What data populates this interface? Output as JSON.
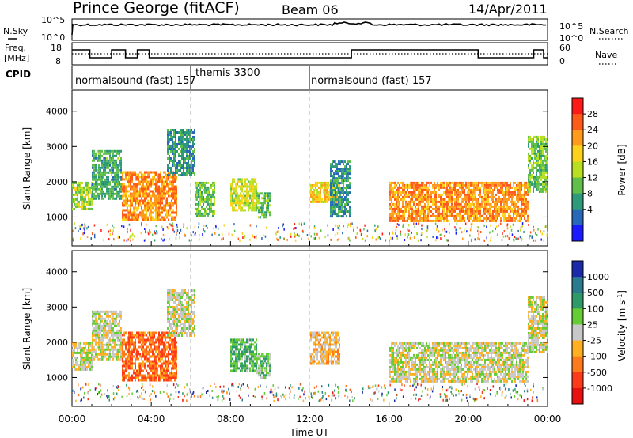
{
  "header": {
    "station": "Prince George (fitACF)",
    "beam": "Beam 06",
    "date": "14/Apr/2011"
  },
  "side_labels": {
    "nsky": "N.Sky",
    "freq_line1": "Freq.",
    "freq_line2": "[MHz]",
    "cpid": "CPID",
    "nsearch": "N.Search",
    "nave": "Nave"
  },
  "noise_panel": {
    "left_ticks": [
      "10^5",
      "10^0"
    ],
    "right_ticks": [
      "10^5",
      "10^0"
    ]
  },
  "freq_panel": {
    "left_ticks": [
      "18",
      "8"
    ],
    "right_ticks": [
      "60",
      "0"
    ],
    "steps": [
      {
        "t0": 0,
        "t1": 0.9,
        "level": 2
      },
      {
        "t0": 0.9,
        "t1": 2.0,
        "level": 1
      },
      {
        "t0": 2.0,
        "t1": 2.7,
        "level": 2
      },
      {
        "t0": 2.7,
        "t1": 3.3,
        "level": 1
      },
      {
        "t0": 3.3,
        "t1": 3.9,
        "level": 2
      },
      {
        "t0": 3.9,
        "t1": 14.1,
        "level": 1
      },
      {
        "t0": 14.1,
        "t1": 20.5,
        "level": 2
      },
      {
        "t0": 20.5,
        "t1": 23.3,
        "level": 1
      },
      {
        "t0": 23.3,
        "t1": 23.8,
        "level": 2
      },
      {
        "t0": 23.8,
        "t1": 24,
        "level": 1
      }
    ]
  },
  "cpid_segments": [
    {
      "label": "normalsound (fast) 157",
      "start": 0
    },
    {
      "label": "themis 3300",
      "start": 6
    },
    {
      "label": "normalsound (fast) 157",
      "start": 12
    }
  ],
  "power_panel": {
    "ylabel": "Slant Range [km]",
    "yticks": [
      "1000",
      "2000",
      "3000",
      "4000"
    ],
    "colorbar_label": "Power [dB]",
    "colorbar_ticks": [
      "28",
      "24",
      "20",
      "16",
      "12",
      "8",
      "4"
    ],
    "colorbar_colors": [
      "#ff1a1a",
      "#ff5a1a",
      "#ff9a1a",
      "#ffd21a",
      "#b8e020",
      "#5fbf4a",
      "#2e9a7a",
      "#2868b8",
      "#1a1aff"
    ]
  },
  "velocity_panel": {
    "ylabel": "Slant Range [km]",
    "yticks": [
      "1000",
      "2000",
      "3000",
      "4000"
    ],
    "colorbar_label": "Velocity [m s^-1]",
    "colorbar_ticks": [
      "1000",
      "500",
      "100",
      "25",
      "-25",
      "-100",
      "-500",
      "-1000"
    ],
    "colorbar_colors": [
      "#1a2aa8",
      "#2a7a90",
      "#2e9a6a",
      "#66cc33",
      "#c8c8c8",
      "#ffb020",
      "#ff7a1a",
      "#ff3a1a",
      "#e81010"
    ]
  },
  "xaxis": {
    "label": "Time UT",
    "ticks": [
      "00:00",
      "04:00",
      "08:00",
      "12:00",
      "16:00",
      "20:00",
      "00:00"
    ]
  },
  "chart_data": {
    "type": "heatmap",
    "title": "Prince George (fitACF) Beam 06 14/Apr/2011",
    "xlabel": "Time UT",
    "ylabel": "Slant Range [km]",
    "xlim": [
      "00:00",
      "24:00"
    ],
    "ylim": [
      180,
      4600
    ],
    "panels": [
      {
        "name": "Power",
        "unit": "dB",
        "colorbar_range": [
          0,
          30
        ],
        "echo_regions": [
          {
            "t0": 0.0,
            "t1": 1.0,
            "r0": 1200,
            "r1": 2000,
            "value": 14
          },
          {
            "t0": 1.0,
            "t1": 2.5,
            "r0": 1500,
            "r1": 2900,
            "value": 10
          },
          {
            "t0": 2.5,
            "t1": 5.3,
            "r0": 900,
            "r1": 2300,
            "value": 22
          },
          {
            "t0": 4.8,
            "t1": 6.2,
            "r0": 2200,
            "r1": 3500,
            "value": 8
          },
          {
            "t0": 6.2,
            "t1": 7.2,
            "r0": 1000,
            "r1": 2000,
            "value": 12
          },
          {
            "t0": 8.0,
            "t1": 9.3,
            "r0": 1200,
            "r1": 2100,
            "value": 16
          },
          {
            "t0": 9.3,
            "t1": 10.0,
            "r0": 1000,
            "r1": 1700,
            "value": 12
          },
          {
            "t0": 12.0,
            "t1": 13.5,
            "r0": 1400,
            "r1": 2000,
            "value": 18
          },
          {
            "t0": 13.0,
            "t1": 14.0,
            "r0": 1000,
            "r1": 2600,
            "value": 8
          },
          {
            "t0": 16.0,
            "t1": 23.0,
            "r0": 900,
            "r1": 2000,
            "value": 22
          },
          {
            "t0": 23.0,
            "t1": 24.0,
            "r0": 1700,
            "r1": 3300,
            "value": 12
          }
        ]
      },
      {
        "name": "Velocity",
        "unit": "m s^-1",
        "colorbar_range": [
          -1000,
          1000
        ],
        "echo_regions": [
          {
            "t0": 0.0,
            "t1": 1.0,
            "r0": 1200,
            "r1": 2000,
            "value": 0
          },
          {
            "t0": 1.0,
            "t1": 2.5,
            "r0": 1500,
            "r1": 2900,
            "value": 0
          },
          {
            "t0": 2.5,
            "t1": 5.3,
            "r0": 900,
            "r1": 2300,
            "value": -500
          },
          {
            "t0": 4.8,
            "t1": 6.2,
            "r0": 2200,
            "r1": 3500,
            "value": 0
          },
          {
            "t0": 8.0,
            "t1": 9.3,
            "r0": 1200,
            "r1": 2100,
            "value": 300
          },
          {
            "t0": 9.3,
            "t1": 10.0,
            "r0": 1000,
            "r1": 1700,
            "value": 200
          },
          {
            "t0": 12.0,
            "t1": 13.5,
            "r0": 1400,
            "r1": 2300,
            "value": -200
          },
          {
            "t0": 16.0,
            "t1": 23.0,
            "r0": 900,
            "r1": 2000,
            "value": 0
          },
          {
            "t0": 23.0,
            "t1": 24.0,
            "r0": 1700,
            "r1": 3300,
            "value": 0
          }
        ]
      }
    ]
  }
}
